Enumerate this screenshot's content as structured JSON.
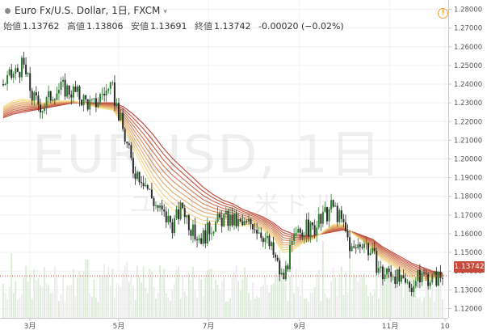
{
  "header": {
    "title": "Euro Fx/U.S. Dollar, 1日, FXCM"
  },
  "ohlc": {
    "open_label": "始値",
    "open": "1.13762",
    "high_label": "高値",
    "high": "1.13806",
    "low_label": "安値",
    "low": "1.13691",
    "close_label": "終値",
    "close": "1.13742",
    "change": "-0.00020 (−0.02%)"
  },
  "watermark": {
    "symbol": "EURUSD, 1日",
    "name": "ユーロ / 米ドル"
  },
  "last_price": "1.13742",
  "colors": {
    "up": "#2e7d32",
    "down": "#333333",
    "volume": "#dfeadc",
    "ema_fast": "#f7e08a",
    "ema_slow": "#b73b30",
    "price_line": "#c74a3a"
  },
  "chart_data": {
    "type": "line",
    "instrument": "Euro Fx/U.S. Dollar",
    "interval": "1日",
    "ylim": [
      1.115,
      1.285
    ],
    "yticks": [
      "1.28000",
      "1.27000",
      "1.26000",
      "1.25000",
      "1.24000",
      "1.23000",
      "1.22000",
      "1.21000",
      "1.20000",
      "1.19000",
      "1.18000",
      "1.17000",
      "1.16000",
      "1.15000",
      "1.14000",
      "1.13000",
      "1.12000"
    ],
    "xticks": [
      "3月",
      "5月",
      "7月",
      "9月",
      "11月",
      "10"
    ],
    "price_path": [
      [
        "2018-02-01",
        1.24
      ],
      [
        "2018-02-08",
        1.245
      ],
      [
        "2018-02-15",
        1.25
      ],
      [
        "2018-02-22",
        1.232
      ],
      [
        "2018-03-01",
        1.228
      ],
      [
        "2018-03-08",
        1.236
      ],
      [
        "2018-03-15",
        1.238
      ],
      [
        "2018-03-22",
        1.236
      ],
      [
        "2018-03-29",
        1.232
      ],
      [
        "2018-04-05",
        1.228
      ],
      [
        "2018-04-12",
        1.236
      ],
      [
        "2018-04-19",
        1.236
      ],
      [
        "2018-04-26",
        1.215
      ],
      [
        "2018-05-03",
        1.195
      ],
      [
        "2018-05-10",
        1.19
      ],
      [
        "2018-05-17",
        1.178
      ],
      [
        "2018-05-24",
        1.17
      ],
      [
        "2018-05-31",
        1.165
      ],
      [
        "2018-06-07",
        1.175
      ],
      [
        "2018-06-14",
        1.16
      ],
      [
        "2018-06-21",
        1.158
      ],
      [
        "2018-06-28",
        1.165
      ],
      [
        "2018-07-05",
        1.168
      ],
      [
        "2018-07-12",
        1.167
      ],
      [
        "2018-07-19",
        1.164
      ],
      [
        "2018-07-26",
        1.166
      ],
      [
        "2018-08-02",
        1.16
      ],
      [
        "2018-08-09",
        1.15
      ],
      [
        "2018-08-16",
        1.135
      ],
      [
        "2018-08-23",
        1.155
      ],
      [
        "2018-08-30",
        1.163
      ],
      [
        "2018-09-06",
        1.162
      ],
      [
        "2018-09-13",
        1.168
      ],
      [
        "2018-09-20",
        1.175
      ],
      [
        "2018-09-27",
        1.165
      ],
      [
        "2018-10-04",
        1.15
      ],
      [
        "2018-10-11",
        1.157
      ],
      [
        "2018-10-18",
        1.148
      ],
      [
        "2018-10-25",
        1.138
      ],
      [
        "2018-11-01",
        1.14
      ],
      [
        "2018-11-08",
        1.132
      ],
      [
        "2018-11-15",
        1.133
      ],
      [
        "2018-11-22",
        1.138
      ],
      [
        "2018-11-29",
        1.136
      ],
      [
        "2018-12-06",
        1.137
      ]
    ],
    "ema_ribbon": {
      "fast": [
        1.228,
        1.231,
        1.232,
        1.231,
        1.23,
        1.231,
        1.231,
        1.231,
        1.23,
        1.228,
        1.227,
        1.226,
        1.218,
        1.206,
        1.195,
        1.185,
        1.178,
        1.173,
        1.17,
        1.167,
        1.165,
        1.165,
        1.165,
        1.165,
        1.164,
        1.164,
        1.162,
        1.158,
        1.15,
        1.151,
        1.155,
        1.157,
        1.161,
        1.165,
        1.165,
        1.16,
        1.156,
        1.151,
        1.146,
        1.143,
        1.139,
        1.136,
        1.135,
        1.136,
        1.137
      ],
      "slow": [
        1.222,
        1.224,
        1.225,
        1.226,
        1.227,
        1.228,
        1.229,
        1.23,
        1.23,
        1.23,
        1.23,
        1.23,
        1.228,
        1.224,
        1.219,
        1.213,
        1.206,
        1.2,
        1.195,
        1.19,
        1.185,
        1.181,
        1.178,
        1.176,
        1.173,
        1.171,
        1.169,
        1.166,
        1.162,
        1.16,
        1.159,
        1.159,
        1.16,
        1.161,
        1.162,
        1.161,
        1.159,
        1.157,
        1.153,
        1.15,
        1.147,
        1.144,
        1.142,
        1.14,
        1.139
      ]
    },
    "last_price": 1.13742
  }
}
